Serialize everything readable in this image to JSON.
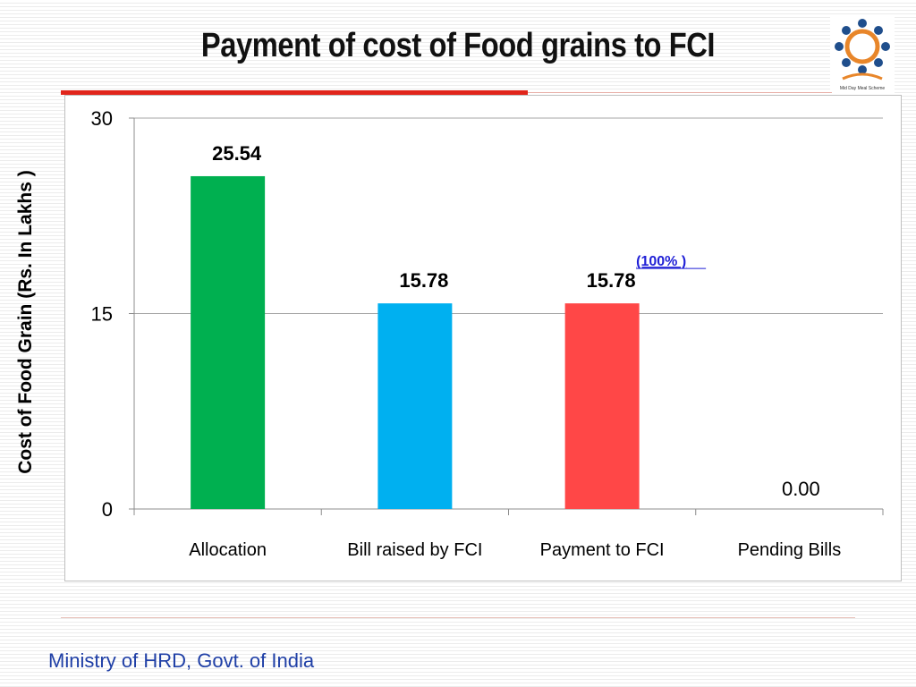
{
  "title": "Payment of cost of Food grains to FCI",
  "footer": "Ministry of HRD, Govt. of India",
  "logo": {
    "caption": "Mid Day Meal Scheme"
  },
  "colors": {
    "allocation": "#00b050",
    "bill": "#00b0f0",
    "payment": "#ff4747",
    "title_rule": "#e1251b",
    "footer_text": "#1f3fa6"
  },
  "chart_data": {
    "type": "bar",
    "categories": [
      "Allocation",
      "Bill raised by FCI",
      "Payment to FCI",
      "Pending Bills"
    ],
    "values": [
      25.54,
      15.78,
      15.78,
      0.0
    ],
    "data_labels": [
      "25.54",
      "15.78",
      "15.78",
      "0.00"
    ],
    "bar_colors": [
      "#00b050",
      "#00b0f0",
      "#ff4747",
      "#ff4747"
    ],
    "ylabel": "Cost of Food Grain (Rs. In Lakhs )",
    "xlabel": "",
    "ylim": [
      0,
      30
    ],
    "yticks": [
      0,
      15,
      30
    ],
    "grid": true,
    "annotation": {
      "text": "(100% )",
      "category": "Payment to FCI"
    }
  }
}
